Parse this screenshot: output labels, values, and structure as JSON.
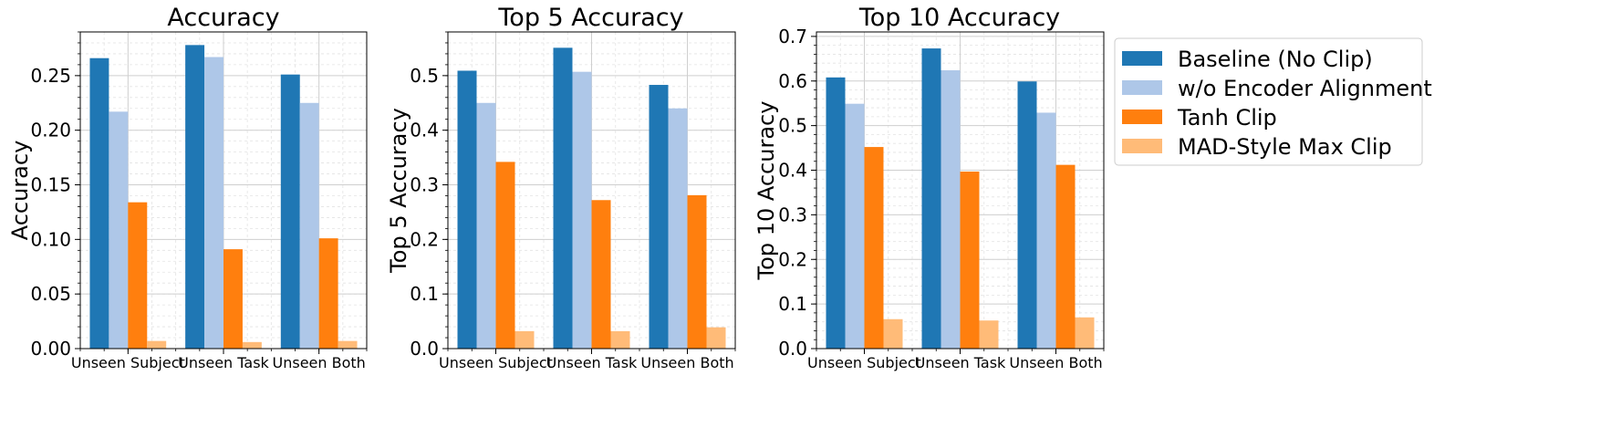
{
  "chart_data": [
    {
      "type": "bar",
      "title": "Accuracy",
      "xlabel": "",
      "ylabel": "Accuracy",
      "categories": [
        "Unseen Subject",
        "Unseen Task",
        "Unseen Both"
      ],
      "ylim": [
        0,
        0.29
      ],
      "yticks": [
        0.0,
        0.05,
        0.1,
        0.15,
        0.2,
        0.25
      ],
      "ytick_labels": [
        "0.00",
        "0.05",
        "0.10",
        "0.15",
        "0.20",
        "0.25"
      ],
      "grid": true,
      "series": [
        {
          "name": "Baseline (No Clip)",
          "values": [
            0.266,
            0.278,
            0.251
          ]
        },
        {
          "name": "w/o Encoder Alignment",
          "values": [
            0.217,
            0.267,
            0.225
          ]
        },
        {
          "name": "Tanh Clip",
          "values": [
            0.134,
            0.091,
            0.101
          ]
        },
        {
          "name": "MAD-Style Max Clip",
          "values": [
            0.007,
            0.006,
            0.007
          ]
        }
      ]
    },
    {
      "type": "bar",
      "title": "Top 5 Accuracy",
      "xlabel": "",
      "ylabel": "Top 5 Accuracy",
      "categories": [
        "Unseen Subject",
        "Unseen Task",
        "Unseen Both"
      ],
      "ylim": [
        0,
        0.58
      ],
      "yticks": [
        0.0,
        0.1,
        0.2,
        0.3,
        0.4,
        0.5
      ],
      "ytick_labels": [
        "0.0",
        "0.1",
        "0.2",
        "0.3",
        "0.4",
        "0.5"
      ],
      "grid": true,
      "series": [
        {
          "name": "Baseline (No Clip)",
          "values": [
            0.509,
            0.551,
            0.483
          ]
        },
        {
          "name": "w/o Encoder Alignment",
          "values": [
            0.45,
            0.507,
            0.44
          ]
        },
        {
          "name": "Tanh Clip",
          "values": [
            0.342,
            0.272,
            0.281
          ]
        },
        {
          "name": "MAD-Style Max Clip",
          "values": [
            0.032,
            0.032,
            0.039
          ]
        }
      ]
    },
    {
      "type": "bar",
      "title": "Top 10 Accuracy",
      "xlabel": "",
      "ylabel": "Top 10 Accuracy",
      "categories": [
        "Unseen Subject",
        "Unseen Task",
        "Unseen Both"
      ],
      "ylim": [
        0,
        0.71
      ],
      "yticks": [
        0.0,
        0.1,
        0.2,
        0.3,
        0.4,
        0.5,
        0.6,
        0.7
      ],
      "ytick_labels": [
        "0.0",
        "0.1",
        "0.2",
        "0.3",
        "0.4",
        "0.5",
        "0.6",
        "0.7"
      ],
      "grid": true,
      "series": [
        {
          "name": "Baseline (No Clip)",
          "values": [
            0.608,
            0.673,
            0.599
          ]
        },
        {
          "name": "w/o Encoder Alignment",
          "values": [
            0.549,
            0.624,
            0.529
          ]
        },
        {
          "name": "Tanh Clip",
          "values": [
            0.452,
            0.397,
            0.412
          ]
        },
        {
          "name": "MAD-Style Max Clip",
          "values": [
            0.066,
            0.063,
            0.07
          ]
        }
      ]
    }
  ],
  "legend": {
    "placement": "outside-right",
    "entries": [
      "Baseline (No Clip)",
      "w/o Encoder Alignment",
      "Tanh Clip",
      "MAD-Style Max Clip"
    ]
  },
  "series_colors": [
    "#1f77b4",
    "#aec7e8",
    "#ff7f0e",
    "#ffbb78"
  ]
}
